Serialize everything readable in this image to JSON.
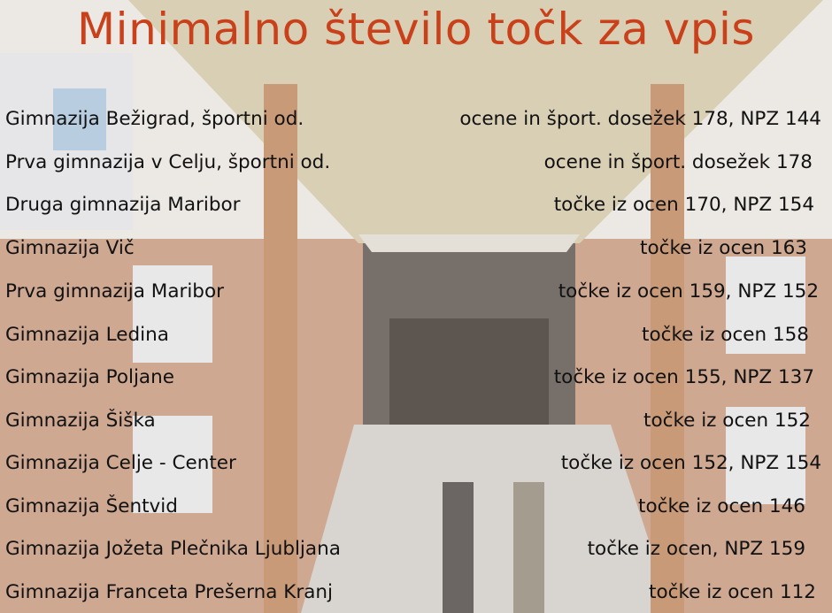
{
  "title": "Minimalno število točk za vpis",
  "colors": {
    "title": "#c9411b",
    "text": "#111111"
  },
  "rows": [
    {
      "school": "Gimnazija Bežigrad, športni od.",
      "points": "ocene in šport. dosežek 178, NPZ 144"
    },
    {
      "school": "Prva gimnazija v Celju, športni od.",
      "points": "ocene in šport. dosežek 178"
    },
    {
      "school": "Druga gimnazija Maribor",
      "points": "točke iz ocen 170, NPZ 154"
    },
    {
      "school": "Gimnazija Vič",
      "points": "točke iz ocen 163"
    },
    {
      "school": "Prva gimnazija Maribor",
      "points": "točke iz ocen 159, NPZ 152"
    },
    {
      "school": "Gimnazija Ledina",
      "points": "točke iz ocen 158"
    },
    {
      "school": "Gimnazija Poljane",
      "points": "točke iz ocen 155, NPZ 137"
    },
    {
      "school": "Gimnazija Šiška",
      "points": "točke iz ocen 152"
    },
    {
      "school": "Gimnazija Celje - Center",
      "points": "točke iz ocen 152, NPZ 154"
    },
    {
      "school": "Gimnazija Šentvid",
      "points": "točke iz ocen 146"
    },
    {
      "school": "Gimnazija Jožeta Plečnika Ljubljana",
      "points": "točke iz ocen, NPZ 159"
    },
    {
      "school": "Gimnazija Franceta Prešerna Kranj",
      "points": "točke iz ocen 112"
    }
  ]
}
